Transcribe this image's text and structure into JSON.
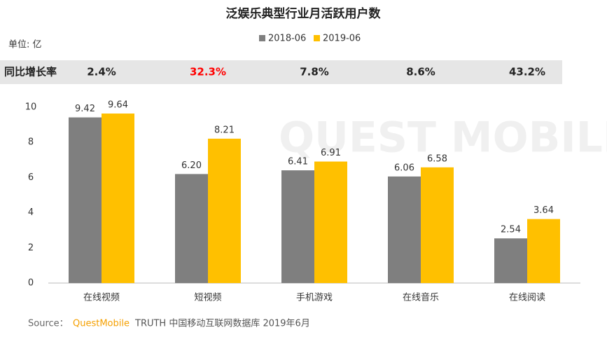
{
  "chart_data": {
    "type": "bar",
    "title": "泛娱乐典型行业月活跃用户数",
    "unit_label": "单位: 亿",
    "watermark": "QUEST MOBILE",
    "categories": [
      "在线视频",
      "短视频",
      "手机游戏",
      "在线音乐",
      "在线阅读"
    ],
    "series": [
      {
        "name": "2018-06",
        "color": "#7f7f7f",
        "values": [
          9.42,
          6.2,
          6.41,
          6.06,
          2.54
        ],
        "value_labels": [
          "9.42",
          "6.20",
          "6.41",
          "6.06",
          "2.54"
        ]
      },
      {
        "name": "2019-06",
        "color": "#ffc000",
        "values": [
          9.64,
          8.21,
          6.91,
          6.58,
          3.64
        ],
        "value_labels": [
          "9.64",
          "8.21",
          "6.91",
          "6.58",
          "3.64"
        ]
      }
    ],
    "growth": {
      "label": "同比增长率",
      "values": [
        2.4,
        32.3,
        7.8,
        8.6,
        43.2
      ],
      "value_labels": [
        "2.4%",
        "32.3%",
        "7.8%",
        "8.6%",
        "43.2%"
      ],
      "colors": [
        "#222222",
        "#ff0000",
        "#222222",
        "#222222",
        "#222222"
      ]
    },
    "ylim": [
      0,
      10
    ],
    "yticks": [
      0,
      2,
      4,
      6,
      8,
      10
    ],
    "grid": false,
    "source": {
      "prefix": "Source：",
      "brand": "QuestMobile",
      "rest": "TRUTH 中国移动互联网数据库 2019年6月",
      "brand_color": "#f5a000"
    }
  }
}
